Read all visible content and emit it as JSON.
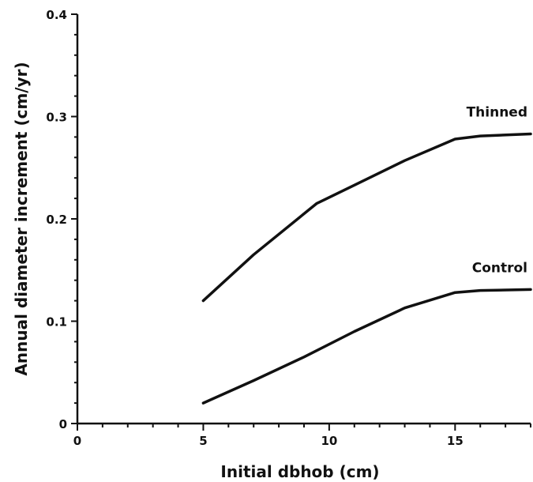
{
  "chart_data": {
    "type": "line",
    "title": "",
    "xlabel": "Initial dbhob (cm)",
    "ylabel": "Annual diameter increment (cm/yr)",
    "xlim": [
      0,
      18
    ],
    "ylim": [
      0,
      0.4
    ],
    "x_ticks": [
      0,
      5,
      10,
      15
    ],
    "x_tick_labels": [
      "0",
      "5",
      "10",
      "15"
    ],
    "x_minor_step": 1,
    "y_ticks": [
      0,
      0.1,
      0.2,
      0.3,
      0.4
    ],
    "y_tick_labels": [
      "0",
      "0.1",
      "0.2",
      "0.3",
      "0.4"
    ],
    "y_minor_step": 0.02,
    "grid": false,
    "series": [
      {
        "name": "Thinned",
        "x": [
          5,
          7,
          9.5,
          11,
          13,
          15,
          16,
          18
        ],
        "y": [
          0.12,
          0.165,
          0.215,
          0.233,
          0.257,
          0.278,
          0.281,
          0.283
        ]
      },
      {
        "name": "Control",
        "x": [
          5,
          7,
          9,
          11,
          13,
          15,
          16,
          18
        ],
        "y": [
          0.02,
          0.042,
          0.065,
          0.09,
          0.113,
          0.128,
          0.13,
          0.131
        ]
      }
    ]
  }
}
